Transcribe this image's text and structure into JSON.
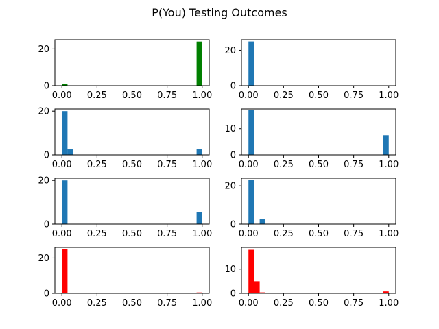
{
  "figure": {
    "title": "P(You) Testing Outcomes"
  },
  "colors": {
    "green": "#008000",
    "blue": "#1f77b4",
    "red": "#ff0000"
  },
  "chart_data": [
    {
      "type": "bar",
      "panel": "row-1-left",
      "color": "green",
      "xlim": [
        -0.05,
        1.05
      ],
      "ylim": [
        0,
        25
      ],
      "xticks": [
        "0.00",
        "0.25",
        "0.50",
        "0.75",
        "1.00"
      ],
      "yticks": [
        "0",
        "20"
      ],
      "bins": [
        {
          "x0": 0.0,
          "x1": 0.04,
          "count": 1
        },
        {
          "x0": 0.96,
          "x1": 1.0,
          "count": 24
        }
      ]
    },
    {
      "type": "bar",
      "panel": "row-1-right",
      "color": "blue",
      "xlim": [
        -0.05,
        1.05
      ],
      "ylim": [
        0,
        26
      ],
      "xticks": [
        "0.00",
        "0.25",
        "0.50",
        "0.75",
        "1.00"
      ],
      "yticks": [
        "0",
        "20"
      ],
      "bins": [
        {
          "x0": 0.0,
          "x1": 0.04,
          "count": 25
        }
      ]
    },
    {
      "type": "bar",
      "panel": "row-2-left",
      "color": "blue",
      "xlim": [
        -0.05,
        1.05
      ],
      "ylim": [
        0,
        21
      ],
      "xticks": [
        "0.00",
        "0.25",
        "0.50",
        "0.75",
        "1.00"
      ],
      "yticks": [
        "0",
        "20"
      ],
      "bins": [
        {
          "x0": 0.0,
          "x1": 0.04,
          "count": 20
        },
        {
          "x0": 0.04,
          "x1": 0.08,
          "count": 2.5
        },
        {
          "x0": 0.96,
          "x1": 1.0,
          "count": 2.5
        }
      ]
    },
    {
      "type": "bar",
      "panel": "row-2-right",
      "color": "blue",
      "xlim": [
        -0.05,
        1.05
      ],
      "ylim": [
        0,
        17.5
      ],
      "xticks": [
        "0.00",
        "0.25",
        "0.50",
        "0.75",
        "1.00"
      ],
      "yticks": [
        "0",
        "10"
      ],
      "bins": [
        {
          "x0": 0.0,
          "x1": 0.04,
          "count": 17
        },
        {
          "x0": 0.96,
          "x1": 1.0,
          "count": 7.5
        }
      ]
    },
    {
      "type": "bar",
      "panel": "row-3-left",
      "color": "blue",
      "xlim": [
        -0.05,
        1.05
      ],
      "ylim": [
        0,
        21
      ],
      "xticks": [
        "0.00",
        "0.25",
        "0.50",
        "0.75",
        "1.00"
      ],
      "yticks": [
        "0",
        "20"
      ],
      "bins": [
        {
          "x0": 0.0,
          "x1": 0.04,
          "count": 20
        },
        {
          "x0": 0.96,
          "x1": 1.0,
          "count": 5.5
        }
      ]
    },
    {
      "type": "bar",
      "panel": "row-3-right",
      "color": "blue",
      "xlim": [
        -0.05,
        1.05
      ],
      "ylim": [
        0,
        24
      ],
      "xticks": [
        "0.00",
        "0.25",
        "0.50",
        "0.75",
        "1.00"
      ],
      "yticks": [
        "0",
        "20"
      ],
      "bins": [
        {
          "x0": 0.0,
          "x1": 0.04,
          "count": 23
        },
        {
          "x0": 0.08,
          "x1": 0.12,
          "count": 2.5
        }
      ]
    },
    {
      "type": "bar",
      "panel": "row-4-left",
      "color": "red",
      "xlim": [
        -0.05,
        1.05
      ],
      "ylim": [
        0,
        26
      ],
      "xticks": [
        "0.00",
        "0.25",
        "0.50",
        "0.75",
        "1.00"
      ],
      "yticks": [
        "0",
        "20"
      ],
      "bins": [
        {
          "x0": 0.0,
          "x1": 0.04,
          "count": 25
        },
        {
          "x0": 0.96,
          "x1": 1.0,
          "count": 0.5
        }
      ]
    },
    {
      "type": "bar",
      "panel": "row-4-right",
      "color": "red",
      "xlim": [
        -0.05,
        1.05
      ],
      "ylim": [
        0,
        19
      ],
      "xticks": [
        "0.00",
        "0.25",
        "0.50",
        "0.75",
        "1.00"
      ],
      "yticks": [
        "0",
        "10"
      ],
      "bins": [
        {
          "x0": 0.0,
          "x1": 0.04,
          "count": 18
        },
        {
          "x0": 0.04,
          "x1": 0.08,
          "count": 5
        },
        {
          "x0": 0.08,
          "x1": 0.12,
          "count": 0.4
        },
        {
          "x0": 0.96,
          "x1": 1.0,
          "count": 0.8
        }
      ]
    }
  ]
}
